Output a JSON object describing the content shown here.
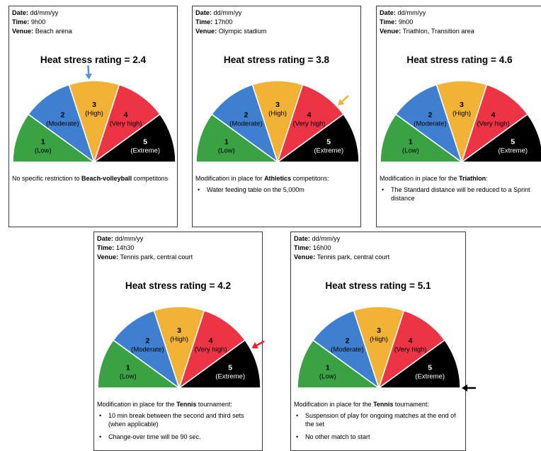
{
  "labels": {
    "date": "Date:",
    "time": "Time:",
    "venue": "Venue:",
    "rating_prefix": "Heat stress rating = "
  },
  "segments": [
    {
      "num": "1",
      "text": "(Low)",
      "color": "#3aa244"
    },
    {
      "num": "2",
      "text": "(Moderate)",
      "color": "#3f7fcf"
    },
    {
      "num": "3",
      "text": "(High)",
      "color": "#f2b235"
    },
    {
      "num": "4",
      "text": "(Very high)",
      "color": "#ec3447"
    },
    {
      "num": "5",
      "text": "(Extreme)",
      "color": "#000000"
    }
  ],
  "cards": [
    {
      "date": "dd/mm/yy",
      "time": "9h00",
      "venue": "Beach arena",
      "rating": "2.4",
      "arrow_color": "#5b8fd6",
      "intro_parts": [
        "No specific restriction to ",
        "Beach-volleyball",
        " competitons"
      ],
      "bullets": []
    },
    {
      "date": "dd/mm/yy",
      "time": "17h00",
      "venue": "Olympic stadium",
      "rating": "3.8",
      "arrow_color": "#f2b235",
      "intro_parts": [
        "Modification in place for ",
        "Athletics",
        " competitons:"
      ],
      "bullets": [
        "Water feeding table on the 5,000m"
      ]
    },
    {
      "date": "dd/mm/yy",
      "time": "9h00",
      "venue": "Triathlon, Transition area",
      "rating": "4.6",
      "arrow_color": "#ec1c24",
      "intro_parts": [
        "Modification in place for the ",
        "Triathlon",
        ":"
      ],
      "bullets": [
        "The Standard distance will be reduced to a Sprint distance"
      ]
    },
    {
      "date": "dd/mm/yy",
      "time": "14h30",
      "venue": "Tennis park, central court",
      "rating": "4.2",
      "arrow_color": "#ec1c24",
      "intro_parts": [
        "Modification in place for the ",
        "Tennis",
        " tournament:"
      ],
      "bullets": [
        "10 min break between the second and third sets (when applicable)",
        "Change-over time will be 90 sec."
      ]
    },
    {
      "date": "dd/mm/yy",
      "time": "16h00",
      "venue": "Tennis park, central court",
      "rating": "5.1",
      "arrow_color": "#000000",
      "intro_parts": [
        "Modification in place for the ",
        "Tennis",
        " tournament:"
      ],
      "bullets": [
        "Suspension of play for ongoing matches at the end of the set",
        "No other match to start"
      ]
    }
  ]
}
